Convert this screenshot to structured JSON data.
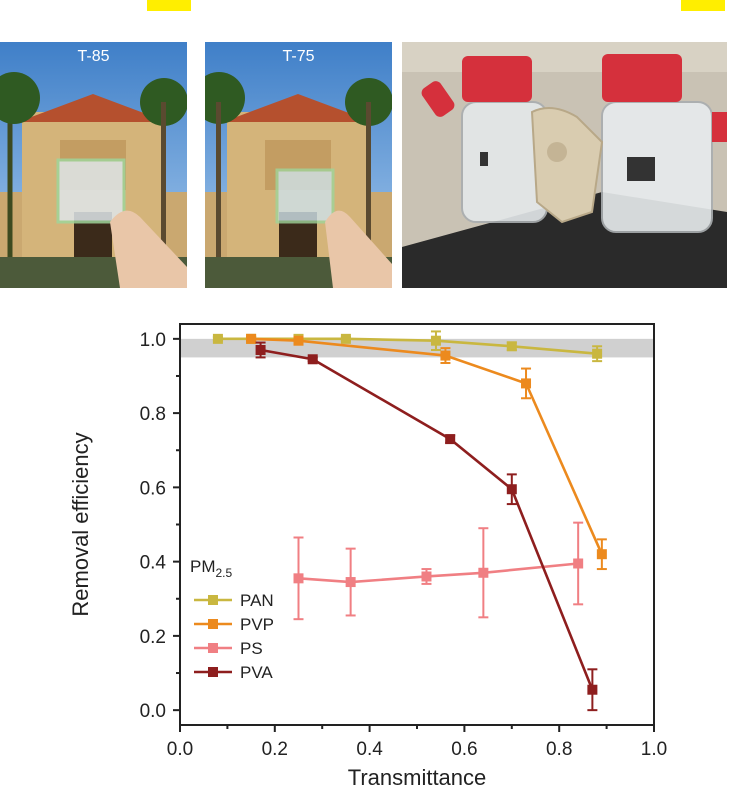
{
  "photos": [
    {
      "label": "T-85"
    },
    {
      "label": "T-75"
    }
  ],
  "chart_data": {
    "type": "line",
    "xlabel": "Transmittance",
    "ylabel": "Removal efficiency",
    "xlim": [
      0.0,
      1.0
    ],
    "ylim": [
      -0.04,
      1.04
    ],
    "xticks": [
      "0.0",
      "0.2",
      "0.4",
      "0.6",
      "0.8",
      "1.0"
    ],
    "yticks": [
      "0.0",
      "0.2",
      "0.4",
      "0.6",
      "0.8",
      "1.0"
    ],
    "reference_band": [
      0.95,
      1.0
    ],
    "legend_title_main": "PM",
    "legend_title_sub": "2.5",
    "legend_position": "bottom-left",
    "series": [
      {
        "name": "PAN",
        "color": "#c9b740",
        "x": [
          0.08,
          0.15,
          0.25,
          0.35,
          0.54,
          0.7,
          0.88
        ],
        "y": [
          1.0,
          1.0,
          1.0,
          1.0,
          0.995,
          0.98,
          0.96
        ],
        "err": [
          0.005,
          0.005,
          0.005,
          0.005,
          0.025,
          0.01,
          0.02
        ]
      },
      {
        "name": "PVP",
        "color": "#ec8a1e",
        "x": [
          0.15,
          0.25,
          0.56,
          0.73,
          0.89
        ],
        "y": [
          1.0,
          0.995,
          0.955,
          0.88,
          0.42
        ],
        "err": [
          0.005,
          0.005,
          0.02,
          0.04,
          0.04
        ]
      },
      {
        "name": "PS",
        "color": "#f07f83",
        "x": [
          0.25,
          0.36,
          0.52,
          0.64,
          0.84
        ],
        "y": [
          0.355,
          0.345,
          0.36,
          0.37,
          0.395
        ],
        "err": [
          0.11,
          0.09,
          0.02,
          0.12,
          0.11
        ]
      },
      {
        "name": "PVA",
        "color": "#8e1e1e",
        "x": [
          0.17,
          0.28,
          0.57,
          0.7,
          0.87
        ],
        "y": [
          0.97,
          0.945,
          0.73,
          0.595,
          0.055
        ],
        "err": [
          0.02,
          0.005,
          0.01,
          0.04,
          0.055
        ]
      }
    ]
  }
}
